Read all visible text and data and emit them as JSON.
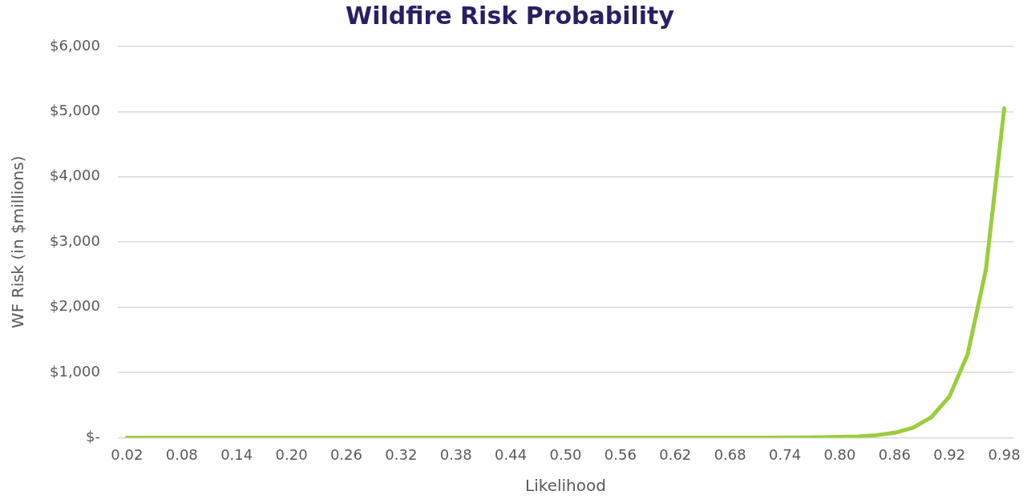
{
  "chart_data": {
    "type": "line",
    "title": "Wildfire Risk Probability",
    "xlabel": "Likelihood",
    "ylabel": "WF Risk (in $millions)",
    "categories": [
      "0.02",
      null,
      null,
      "0.08",
      null,
      null,
      "0.14",
      null,
      null,
      "0.20",
      null,
      null,
      "0.26",
      null,
      null,
      "0.32",
      null,
      null,
      "0.38",
      null,
      null,
      "0.44",
      null,
      null,
      "0.50",
      null,
      null,
      "0.56",
      null,
      null,
      "0.62",
      null,
      null,
      "0.68",
      null,
      null,
      "0.74",
      null,
      null,
      "0.80",
      null,
      null,
      "0.86",
      null,
      null,
      "0.92",
      null,
      null,
      "0.98"
    ],
    "series": [
      {
        "color": "#9acd3c",
        "values": [
          0,
          0,
          0,
          0,
          0,
          0,
          0,
          0,
          0,
          0,
          0,
          0,
          0,
          0,
          0,
          0,
          0,
          0,
          0,
          0,
          0,
          0,
          0,
          0,
          0,
          0,
          0,
          0,
          0,
          0,
          0,
          0,
          0,
          0,
          0,
          0,
          1,
          2,
          5,
          10,
          18,
          37,
          75,
          150,
          310,
          630,
          1280,
          2580,
          5050
        ]
      }
    ],
    "ylim": [
      0,
      6000
    ],
    "yticks": [
      {
        "value": 0,
        "label": "$-"
      },
      {
        "value": 1000,
        "label": "$1,000"
      },
      {
        "value": 2000,
        "label": "$2,000"
      },
      {
        "value": 3000,
        "label": "$3,000"
      },
      {
        "value": 4000,
        "label": "$4,000"
      },
      {
        "value": 5000,
        "label": "$5,000"
      },
      {
        "value": 6000,
        "label": "$6,000"
      }
    ],
    "grid": "y",
    "legend": false,
    "marker": "none",
    "line_style": "solid"
  }
}
